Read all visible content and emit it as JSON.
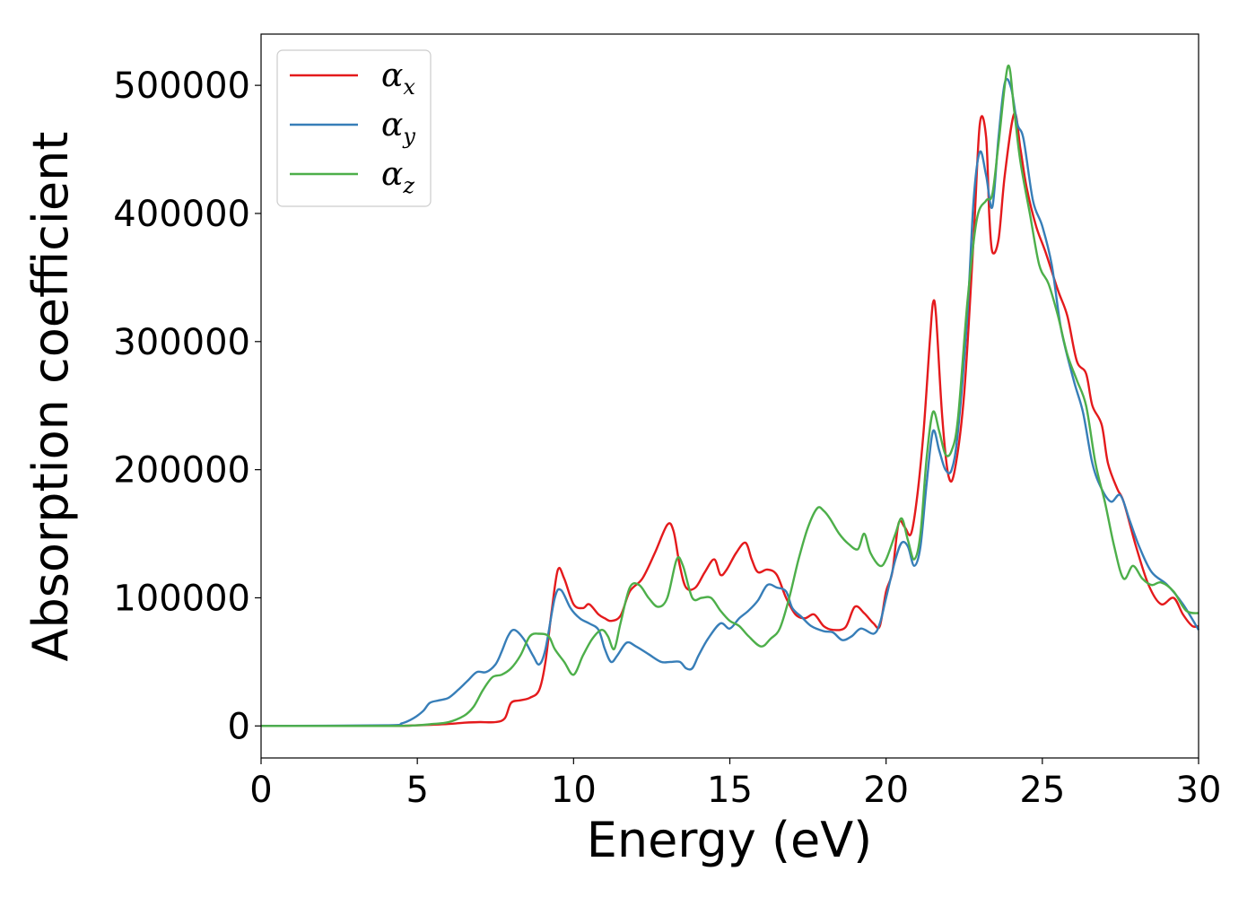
{
  "chart_data": {
    "type": "line",
    "xlabel": "Energy (eV)",
    "ylabel": "Absorption coefficient",
    "xlim": [
      0,
      30
    ],
    "ylim": [
      -25000,
      540000
    ],
    "xticks": [
      0,
      5,
      10,
      15,
      20,
      25,
      30
    ],
    "xtick_labels": [
      "0",
      "5",
      "10",
      "15",
      "20",
      "25",
      "30"
    ],
    "yticks": [
      0,
      100000,
      200000,
      300000,
      400000,
      500000
    ],
    "ytick_labels": [
      "0",
      "100000",
      "200000",
      "300000",
      "400000",
      "500000"
    ],
    "grid": false,
    "legend_position": "top-left",
    "series": [
      {
        "name": "α",
        "name_subscript": "x",
        "color": "#e41a1c",
        "points": [
          [
            0,
            0
          ],
          [
            4,
            0
          ],
          [
            5,
            500
          ],
          [
            6,
            1500
          ],
          [
            6.5,
            2500
          ],
          [
            7,
            3000
          ],
          [
            7.5,
            3000
          ],
          [
            7.8,
            6000
          ],
          [
            8,
            18000
          ],
          [
            8.3,
            20000
          ],
          [
            8.6,
            22000
          ],
          [
            8.9,
            28000
          ],
          [
            9.1,
            50000
          ],
          [
            9.3,
            90000
          ],
          [
            9.5,
            122000
          ],
          [
            9.7,
            115000
          ],
          [
            10,
            95000
          ],
          [
            10.3,
            92000
          ],
          [
            10.5,
            95000
          ],
          [
            10.8,
            87000
          ],
          [
            11,
            84000
          ],
          [
            11.2,
            82000
          ],
          [
            11.5,
            86000
          ],
          [
            11.8,
            105000
          ],
          [
            12.2,
            115000
          ],
          [
            12.6,
            135000
          ],
          [
            13,
            157000
          ],
          [
            13.2,
            152000
          ],
          [
            13.4,
            125000
          ],
          [
            13.6,
            108000
          ],
          [
            13.9,
            108000
          ],
          [
            14.2,
            120000
          ],
          [
            14.5,
            130000
          ],
          [
            14.7,
            118000
          ],
          [
            14.9,
            122000
          ],
          [
            15.2,
            135000
          ],
          [
            15.5,
            143000
          ],
          [
            15.7,
            130000
          ],
          [
            15.9,
            120000
          ],
          [
            16.2,
            122000
          ],
          [
            16.5,
            118000
          ],
          [
            16.8,
            100000
          ],
          [
            17.1,
            87000
          ],
          [
            17.4,
            84000
          ],
          [
            17.7,
            87000
          ],
          [
            18,
            78000
          ],
          [
            18.3,
            75000
          ],
          [
            18.7,
            77000
          ],
          [
            19,
            93000
          ],
          [
            19.3,
            88000
          ],
          [
            19.6,
            80000
          ],
          [
            19.8,
            78000
          ],
          [
            20,
            105000
          ],
          [
            20.2,
            120000
          ],
          [
            20.4,
            158000
          ],
          [
            20.6,
            155000
          ],
          [
            20.8,
            150000
          ],
          [
            21,
            180000
          ],
          [
            21.2,
            230000
          ],
          [
            21.4,
            300000
          ],
          [
            21.5,
            330000
          ],
          [
            21.6,
            320000
          ],
          [
            21.8,
            240000
          ],
          [
            22,
            195000
          ],
          [
            22.2,
            200000
          ],
          [
            22.5,
            260000
          ],
          [
            22.8,
            380000
          ],
          [
            23,
            470000
          ],
          [
            23.2,
            460000
          ],
          [
            23.3,
            400000
          ],
          [
            23.4,
            370000
          ],
          [
            23.6,
            380000
          ],
          [
            23.8,
            430000
          ],
          [
            24.1,
            478000
          ],
          [
            24.3,
            450000
          ],
          [
            24.5,
            420000
          ],
          [
            24.8,
            390000
          ],
          [
            25.1,
            370000
          ],
          [
            25.5,
            340000
          ],
          [
            25.8,
            320000
          ],
          [
            26.1,
            285000
          ],
          [
            26.4,
            275000
          ],
          [
            26.6,
            250000
          ],
          [
            26.9,
            235000
          ],
          [
            27.1,
            205000
          ],
          [
            27.4,
            185000
          ],
          [
            27.6,
            175000
          ],
          [
            28,
            140000
          ],
          [
            28.4,
            110000
          ],
          [
            28.8,
            95000
          ],
          [
            29.2,
            100000
          ],
          [
            29.5,
            87000
          ],
          [
            29.8,
            78000
          ],
          [
            30,
            78000
          ]
        ]
      },
      {
        "name": "α",
        "name_subscript": "y",
        "color": "#377eb8",
        "points": [
          [
            0,
            0
          ],
          [
            4,
            500
          ],
          [
            4.5,
            2000
          ],
          [
            4.8,
            5000
          ],
          [
            5,
            8000
          ],
          [
            5.2,
            12000
          ],
          [
            5.4,
            18000
          ],
          [
            5.7,
            20000
          ],
          [
            6,
            22000
          ],
          [
            6.3,
            28000
          ],
          [
            6.6,
            35000
          ],
          [
            6.9,
            42000
          ],
          [
            7.2,
            42000
          ],
          [
            7.5,
            48000
          ],
          [
            7.7,
            58000
          ],
          [
            7.9,
            70000
          ],
          [
            8.1,
            75000
          ],
          [
            8.4,
            68000
          ],
          [
            8.7,
            55000
          ],
          [
            8.9,
            48000
          ],
          [
            9.1,
            60000
          ],
          [
            9.4,
            100000
          ],
          [
            9.6,
            106000
          ],
          [
            9.9,
            92000
          ],
          [
            10.2,
            84000
          ],
          [
            10.5,
            80000
          ],
          [
            10.8,
            75000
          ],
          [
            11,
            60000
          ],
          [
            11.2,
            50000
          ],
          [
            11.4,
            55000
          ],
          [
            11.7,
            65000
          ],
          [
            12,
            62000
          ],
          [
            12.4,
            56000
          ],
          [
            12.8,
            50000
          ],
          [
            13.1,
            50000
          ],
          [
            13.4,
            50000
          ],
          [
            13.6,
            45000
          ],
          [
            13.8,
            45000
          ],
          [
            14,
            55000
          ],
          [
            14.3,
            68000
          ],
          [
            14.7,
            80000
          ],
          [
            15,
            76000
          ],
          [
            15.3,
            84000
          ],
          [
            15.6,
            90000
          ],
          [
            15.9,
            98000
          ],
          [
            16.2,
            110000
          ],
          [
            16.5,
            108000
          ],
          [
            16.8,
            105000
          ],
          [
            17,
            92000
          ],
          [
            17.3,
            85000
          ],
          [
            17.6,
            78000
          ],
          [
            18,
            74000
          ],
          [
            18.3,
            73000
          ],
          [
            18.6,
            67000
          ],
          [
            18.9,
            70000
          ],
          [
            19.2,
            76000
          ],
          [
            19.6,
            72000
          ],
          [
            19.8,
            80000
          ],
          [
            20,
            100000
          ],
          [
            20.3,
            130000
          ],
          [
            20.5,
            143000
          ],
          [
            20.7,
            140000
          ],
          [
            20.9,
            125000
          ],
          [
            21.1,
            140000
          ],
          [
            21.3,
            190000
          ],
          [
            21.5,
            230000
          ],
          [
            21.7,
            215000
          ],
          [
            21.9,
            200000
          ],
          [
            22.1,
            200000
          ],
          [
            22.3,
            230000
          ],
          [
            22.6,
            320000
          ],
          [
            22.8,
            410000
          ],
          [
            23,
            448000
          ],
          [
            23.2,
            430000
          ],
          [
            23.4,
            405000
          ],
          [
            23.6,
            460000
          ],
          [
            23.8,
            502000
          ],
          [
            24,
            498000
          ],
          [
            24.2,
            470000
          ],
          [
            24.4,
            458000
          ],
          [
            24.7,
            410000
          ],
          [
            25,
            390000
          ],
          [
            25.3,
            360000
          ],
          [
            25.6,
            310000
          ],
          [
            26,
            270000
          ],
          [
            26.3,
            245000
          ],
          [
            26.6,
            205000
          ],
          [
            26.9,
            185000
          ],
          [
            27.2,
            175000
          ],
          [
            27.5,
            180000
          ],
          [
            27.8,
            160000
          ],
          [
            28.1,
            140000
          ],
          [
            28.5,
            120000
          ],
          [
            29,
            110000
          ],
          [
            29.5,
            95000
          ],
          [
            30,
            75000
          ]
        ]
      },
      {
        "name": "α",
        "name_subscript": "z",
        "color": "#4daf4a",
        "points": [
          [
            0,
            0
          ],
          [
            4,
            0
          ],
          [
            5,
            500
          ],
          [
            5.5,
            1500
          ],
          [
            6,
            3000
          ],
          [
            6.5,
            8000
          ],
          [
            6.8,
            15000
          ],
          [
            7.1,
            28000
          ],
          [
            7.4,
            38000
          ],
          [
            7.7,
            40000
          ],
          [
            8,
            45000
          ],
          [
            8.3,
            55000
          ],
          [
            8.6,
            70000
          ],
          [
            8.9,
            72000
          ],
          [
            9.2,
            70000
          ],
          [
            9.4,
            60000
          ],
          [
            9.7,
            50000
          ],
          [
            10,
            40000
          ],
          [
            10.3,
            55000
          ],
          [
            10.6,
            68000
          ],
          [
            10.9,
            75000
          ],
          [
            11.1,
            70000
          ],
          [
            11.3,
            60000
          ],
          [
            11.5,
            80000
          ],
          [
            11.8,
            108000
          ],
          [
            12.1,
            110000
          ],
          [
            12.4,
            100000
          ],
          [
            12.7,
            93000
          ],
          [
            13,
            100000
          ],
          [
            13.3,
            130000
          ],
          [
            13.5,
            125000
          ],
          [
            13.8,
            100000
          ],
          [
            14.1,
            100000
          ],
          [
            14.4,
            100000
          ],
          [
            14.7,
            90000
          ],
          [
            15,
            82000
          ],
          [
            15.3,
            78000
          ],
          [
            15.6,
            70000
          ],
          [
            16,
            62000
          ],
          [
            16.3,
            68000
          ],
          [
            16.6,
            76000
          ],
          [
            16.9,
            100000
          ],
          [
            17.2,
            130000
          ],
          [
            17.5,
            155000
          ],
          [
            17.8,
            170000
          ],
          [
            18,
            168000
          ],
          [
            18.2,
            162000
          ],
          [
            18.5,
            150000
          ],
          [
            18.8,
            142000
          ],
          [
            19.1,
            138000
          ],
          [
            19.3,
            150000
          ],
          [
            19.5,
            135000
          ],
          [
            19.8,
            125000
          ],
          [
            20,
            130000
          ],
          [
            20.3,
            150000
          ],
          [
            20.5,
            162000
          ],
          [
            20.7,
            145000
          ],
          [
            20.9,
            130000
          ],
          [
            21.1,
            150000
          ],
          [
            21.3,
            210000
          ],
          [
            21.5,
            245000
          ],
          [
            21.7,
            230000
          ],
          [
            21.9,
            212000
          ],
          [
            22.1,
            215000
          ],
          [
            22.3,
            240000
          ],
          [
            22.6,
            330000
          ],
          [
            22.9,
            395000
          ],
          [
            23.2,
            410000
          ],
          [
            23.4,
            415000
          ],
          [
            23.6,
            455000
          ],
          [
            23.9,
            515000
          ],
          [
            24.1,
            480000
          ],
          [
            24.3,
            440000
          ],
          [
            24.6,
            400000
          ],
          [
            24.9,
            360000
          ],
          [
            25.2,
            345000
          ],
          [
            25.5,
            320000
          ],
          [
            25.8,
            290000
          ],
          [
            26.1,
            270000
          ],
          [
            26.4,
            250000
          ],
          [
            26.7,
            205000
          ],
          [
            27,
            175000
          ],
          [
            27.3,
            140000
          ],
          [
            27.6,
            115000
          ],
          [
            27.9,
            125000
          ],
          [
            28.2,
            115000
          ],
          [
            28.5,
            110000
          ],
          [
            28.8,
            112000
          ],
          [
            29.2,
            105000
          ],
          [
            29.6,
            90000
          ],
          [
            30,
            88000
          ]
        ]
      }
    ]
  }
}
